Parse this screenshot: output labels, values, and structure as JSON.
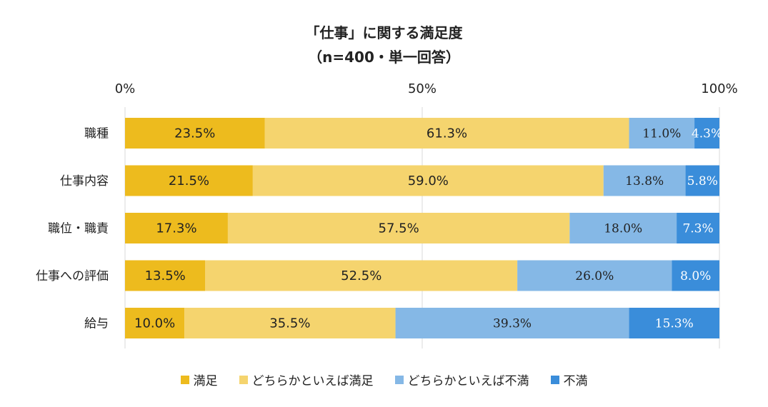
{
  "title": "「仕事」に関する満足度",
  "subtitle": "（n=400・単一回答）",
  "colors": {
    "satisfied": "#EDBB1E",
    "somewhat_satisfied": "#F5D46E",
    "somewhat_dissatisfied": "#85B8E6",
    "dissatisfied": "#3A8DDA",
    "grid": "#d9d9d9"
  },
  "chart_data": {
    "type": "bar",
    "orientation": "horizontal-stacked-100",
    "categories": [
      "職種",
      "仕事内容",
      "職位・職責",
      "仕事への評価",
      "給与"
    ],
    "series": [
      {
        "name": "満足",
        "values": [
          23.5,
          21.5,
          17.3,
          13.5,
          10.0
        ],
        "labels": [
          "23.5%",
          "21.5%",
          "17.3%",
          "13.5%",
          "10.0%"
        ]
      },
      {
        "name": "どちらかといえば満足",
        "values": [
          61.3,
          59.0,
          57.5,
          52.5,
          35.5
        ],
        "labels": [
          "61.3%",
          "59.0%",
          "57.5%",
          "52.5%",
          "35.5%"
        ]
      },
      {
        "name": "どちらかといえば不満",
        "values": [
          11.0,
          13.8,
          18.0,
          26.0,
          39.3
        ],
        "labels": [
          "11.0%",
          "13.8%",
          "18.0%",
          "26.0%",
          "39.3%"
        ]
      },
      {
        "name": "不満",
        "values": [
          4.3,
          5.8,
          7.3,
          8.0,
          15.3
        ],
        "labels": [
          "4.3%",
          "5.8%",
          "7.3%",
          "8.0%",
          "15.3%"
        ]
      }
    ],
    "xlim": [
      0,
      100
    ],
    "xticks": [
      0,
      50,
      100
    ],
    "xtick_labels": [
      "0%",
      "50%",
      "100%"
    ],
    "grid": true,
    "legend_position": "bottom"
  }
}
